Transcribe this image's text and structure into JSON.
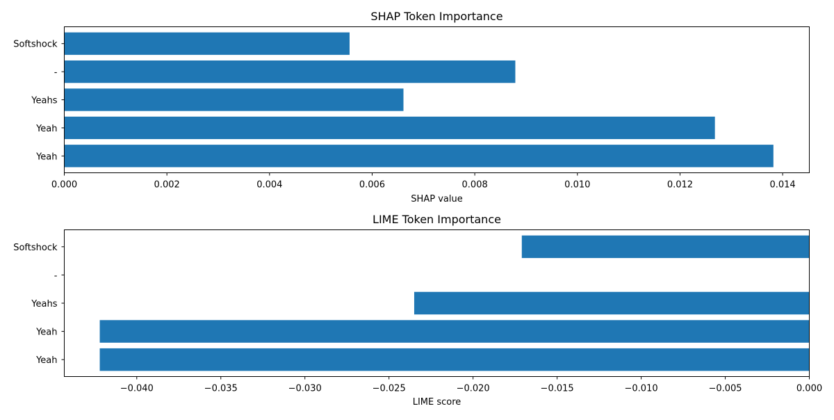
{
  "chart_data": [
    {
      "type": "bar",
      "orientation": "horizontal",
      "title": "SHAP Token Importance",
      "xlabel": "SHAP value",
      "ylabel": "",
      "categories": [
        "Yeah",
        "Yeah",
        "Yeahs",
        "-",
        "Softshock"
      ],
      "values": [
        0.01382,
        0.01268,
        0.00661,
        0.00879,
        0.00556
      ],
      "xlim": [
        0,
        0.01452
      ],
      "xticks": [
        0,
        0.002,
        0.004,
        0.006,
        0.008,
        0.01,
        0.012,
        0.014
      ],
      "xtick_labels": [
        "0.000",
        "0.002",
        "0.004",
        "0.006",
        "0.008",
        "0.010",
        "0.012",
        "0.014"
      ],
      "grid": false,
      "bar_color": "#1f77b4"
    },
    {
      "type": "bar",
      "orientation": "horizontal",
      "title": "LIME Token Importance",
      "xlabel": "LIME score",
      "ylabel": "",
      "categories": [
        "Yeah",
        "Yeah",
        "Yeahs",
        "-",
        "Softshock"
      ],
      "values": [
        -0.0422,
        -0.0422,
        -0.0235,
        0,
        -0.0171
      ],
      "xlim": [
        -0.04431,
        0
      ],
      "xticks": [
        -0.04,
        -0.035,
        -0.03,
        -0.025,
        -0.02,
        -0.015,
        -0.01,
        -0.005,
        0.0
      ],
      "xtick_labels": [
        "−0.040",
        "−0.035",
        "−0.030",
        "−0.025",
        "−0.020",
        "−0.015",
        "−0.010",
        "−0.005",
        "0.000"
      ],
      "grid": false,
      "bar_color": "#1f77b4"
    }
  ]
}
